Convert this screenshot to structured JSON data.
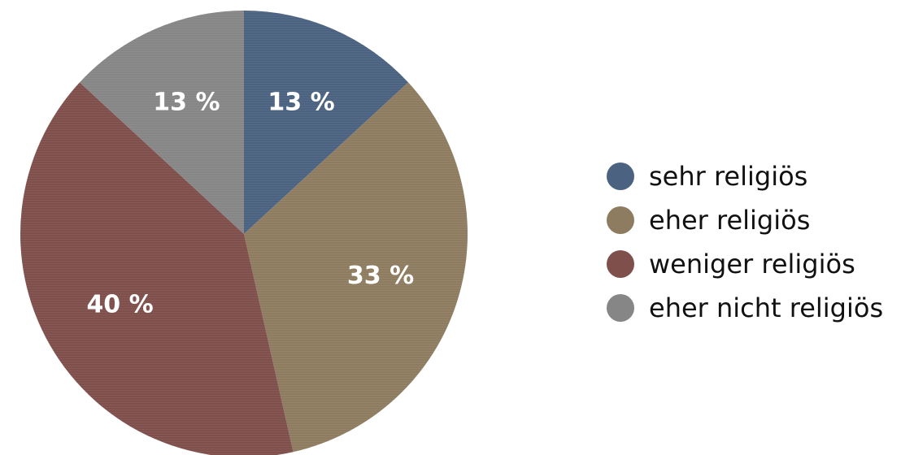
{
  "chart_data": {
    "type": "pie",
    "title": "",
    "start_angle_deg": 0,
    "direction": "clockwise",
    "slices": [
      {
        "label": "sehr religiös",
        "value": 13,
        "display": "13 %",
        "color": "#4b6280"
      },
      {
        "label": "eher religiös",
        "value": 33,
        "display": "33 %",
        "color": "#8e7c60"
      },
      {
        "label": "weniger religiös",
        "value": 40,
        "display": "40 %",
        "color": "#7f4f4c"
      },
      {
        "label": "eher nicht religiös",
        "value": 13,
        "display": "13 %",
        "color": "#868686"
      }
    ],
    "legend_position": "right"
  }
}
